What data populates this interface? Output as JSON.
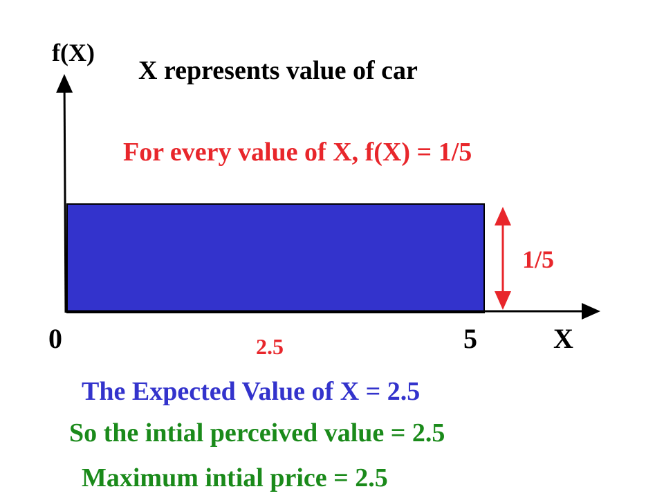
{
  "axis": {
    "y_label": "f(X)",
    "x_label": "X",
    "origin_label": "0",
    "end_label": "5",
    "mid_label": "2.5"
  },
  "title": "X represents value of car",
  "density_note": "For every value of X, f(X) = 1/5",
  "height_label": "1/5",
  "conclusions": [
    "The Expected Value of X = 2.5",
    "So the intial perceived value = 2.5",
    "Maximum intial price = 2.5"
  ]
}
